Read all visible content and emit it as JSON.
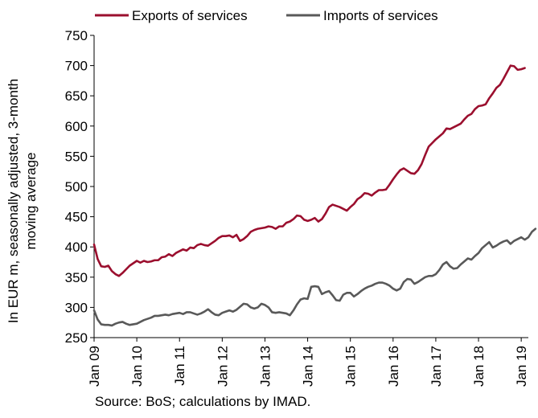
{
  "source": "Source: BoS; calculations by IMAD.",
  "chart_data": {
    "type": "line",
    "title": "",
    "ylabel_lines": [
      "In EUR m, seasonally adjusted, 3-month",
      "moving average"
    ],
    "xlabel": "",
    "ylim": [
      250,
      750
    ],
    "yticks": [
      250,
      300,
      350,
      400,
      450,
      500,
      550,
      600,
      650,
      700,
      750
    ],
    "ytick_labels": [
      "250",
      "300",
      "350",
      "400",
      "450",
      "500",
      "550",
      "600",
      "650",
      "700",
      "750"
    ],
    "xlim": [
      "2009-01",
      "2019-03"
    ],
    "xtick_labels": [
      "Jan 09",
      "Jan 10",
      "Jan 11",
      "Jan 12",
      "Jan 13",
      "Jan 14",
      "Jan 15",
      "Jan 16",
      "Jan 17",
      "Jan 18",
      "Jan 19"
    ],
    "xtick_dates": [
      "2009-01",
      "2010-01",
      "2011-01",
      "2012-01",
      "2013-01",
      "2014-01",
      "2015-01",
      "2016-01",
      "2017-01",
      "2018-01",
      "2019-01"
    ],
    "grid": false,
    "legend_position": "top",
    "series": [
      {
        "name": "Exports of services",
        "color": "#9b0f2e",
        "points": [
          [
            "2009-01",
            404
          ],
          [
            "2009-02",
            380
          ],
          [
            "2009-03",
            368
          ],
          [
            "2009-04",
            367
          ],
          [
            "2009-05",
            369
          ],
          [
            "2009-06",
            360
          ],
          [
            "2009-07",
            355
          ],
          [
            "2009-08",
            352
          ],
          [
            "2009-09",
            357
          ],
          [
            "2009-10",
            363
          ],
          [
            "2009-11",
            369
          ],
          [
            "2009-12",
            373
          ],
          [
            "2010-01",
            377
          ],
          [
            "2010-02",
            374
          ],
          [
            "2010-03",
            377
          ],
          [
            "2010-04",
            375
          ],
          [
            "2010-05",
            376
          ],
          [
            "2010-06",
            378
          ],
          [
            "2010-07",
            378
          ],
          [
            "2010-08",
            383
          ],
          [
            "2010-09",
            384
          ],
          [
            "2010-10",
            388
          ],
          [
            "2010-11",
            385
          ],
          [
            "2010-12",
            390
          ],
          [
            "2011-01",
            393
          ],
          [
            "2011-02",
            396
          ],
          [
            "2011-03",
            394
          ],
          [
            "2011-04",
            399
          ],
          [
            "2011-05",
            398
          ],
          [
            "2011-06",
            403
          ],
          [
            "2011-07",
            405
          ],
          [
            "2011-08",
            403
          ],
          [
            "2011-09",
            402
          ],
          [
            "2011-10",
            406
          ],
          [
            "2011-11",
            410
          ],
          [
            "2011-12",
            415
          ],
          [
            "2012-01",
            418
          ],
          [
            "2012-02",
            418
          ],
          [
            "2012-03",
            419
          ],
          [
            "2012-04",
            416
          ],
          [
            "2012-05",
            420
          ],
          [
            "2012-06",
            410
          ],
          [
            "2012-07",
            413
          ],
          [
            "2012-08",
            418
          ],
          [
            "2012-09",
            425
          ],
          [
            "2012-10",
            428
          ],
          [
            "2012-11",
            430
          ],
          [
            "2012-12",
            431
          ],
          [
            "2013-01",
            432
          ],
          [
            "2013-02",
            434
          ],
          [
            "2013-03",
            433
          ],
          [
            "2013-04",
            430
          ],
          [
            "2013-05",
            434
          ],
          [
            "2013-06",
            434
          ],
          [
            "2013-07",
            440
          ],
          [
            "2013-08",
            442
          ],
          [
            "2013-09",
            446
          ],
          [
            "2013-10",
            452
          ],
          [
            "2013-11",
            451
          ],
          [
            "2013-12",
            445
          ],
          [
            "2014-01",
            443
          ],
          [
            "2014-02",
            445
          ],
          [
            "2014-03",
            448
          ],
          [
            "2014-04",
            442
          ],
          [
            "2014-05",
            446
          ],
          [
            "2014-06",
            455
          ],
          [
            "2014-07",
            466
          ],
          [
            "2014-08",
            470
          ],
          [
            "2014-09",
            468
          ],
          [
            "2014-10",
            466
          ],
          [
            "2014-11",
            463
          ],
          [
            "2014-12",
            460
          ],
          [
            "2015-01",
            466
          ],
          [
            "2015-02",
            471
          ],
          [
            "2015-03",
            479
          ],
          [
            "2015-04",
            483
          ],
          [
            "2015-05",
            489
          ],
          [
            "2015-06",
            488
          ],
          [
            "2015-07",
            485
          ],
          [
            "2015-08",
            490
          ],
          [
            "2015-09",
            494
          ],
          [
            "2015-10",
            494
          ],
          [
            "2015-11",
            495
          ],
          [
            "2015-12",
            503
          ],
          [
            "2016-01",
            512
          ],
          [
            "2016-02",
            520
          ],
          [
            "2016-03",
            527
          ],
          [
            "2016-04",
            530
          ],
          [
            "2016-05",
            526
          ],
          [
            "2016-06",
            522
          ],
          [
            "2016-07",
            521
          ],
          [
            "2016-08",
            527
          ],
          [
            "2016-09",
            537
          ],
          [
            "2016-10",
            552
          ],
          [
            "2016-11",
            566
          ],
          [
            "2016-12",
            572
          ],
          [
            "2017-01",
            578
          ],
          [
            "2017-02",
            583
          ],
          [
            "2017-03",
            588
          ],
          [
            "2017-04",
            596
          ],
          [
            "2017-05",
            595
          ],
          [
            "2017-06",
            598
          ],
          [
            "2017-07",
            601
          ],
          [
            "2017-08",
            604
          ],
          [
            "2017-09",
            611
          ],
          [
            "2017-10",
            617
          ],
          [
            "2017-11",
            620
          ],
          [
            "2017-12",
            628
          ],
          [
            "2018-01",
            633
          ],
          [
            "2018-02",
            634
          ],
          [
            "2018-03",
            636
          ],
          [
            "2018-04",
            646
          ],
          [
            "2018-05",
            654
          ],
          [
            "2018-06",
            663
          ],
          [
            "2018-07",
            668
          ],
          [
            "2018-08",
            678
          ],
          [
            "2018-09",
            689
          ],
          [
            "2018-10",
            700
          ],
          [
            "2018-11",
            699
          ],
          [
            "2018-12",
            693
          ],
          [
            "2019-01",
            694
          ],
          [
            "2019-02",
            696
          ]
        ]
      },
      {
        "name": "Imports of services",
        "color": "#595959",
        "points": [
          [
            "2009-01",
            295
          ],
          [
            "2009-02",
            280
          ],
          [
            "2009-03",
            272
          ],
          [
            "2009-04",
            271
          ],
          [
            "2009-05",
            271
          ],
          [
            "2009-06",
            270
          ],
          [
            "2009-07",
            273
          ],
          [
            "2009-08",
            275
          ],
          [
            "2009-09",
            276
          ],
          [
            "2009-10",
            273
          ],
          [
            "2009-11",
            271
          ],
          [
            "2009-12",
            272
          ],
          [
            "2010-01",
            273
          ],
          [
            "2010-02",
            276
          ],
          [
            "2010-03",
            279
          ],
          [
            "2010-04",
            281
          ],
          [
            "2010-05",
            283
          ],
          [
            "2010-06",
            286
          ],
          [
            "2010-07",
            286
          ],
          [
            "2010-08",
            287
          ],
          [
            "2010-09",
            288
          ],
          [
            "2010-10",
            287
          ],
          [
            "2010-11",
            289
          ],
          [
            "2010-12",
            290
          ],
          [
            "2011-01",
            291
          ],
          [
            "2011-02",
            289
          ],
          [
            "2011-03",
            292
          ],
          [
            "2011-04",
            292
          ],
          [
            "2011-05",
            290
          ],
          [
            "2011-06",
            288
          ],
          [
            "2011-07",
            290
          ],
          [
            "2011-08",
            293
          ],
          [
            "2011-09",
            297
          ],
          [
            "2011-10",
            292
          ],
          [
            "2011-11",
            288
          ],
          [
            "2011-12",
            287
          ],
          [
            "2012-01",
            291
          ],
          [
            "2012-02",
            293
          ],
          [
            "2012-03",
            295
          ],
          [
            "2012-04",
            293
          ],
          [
            "2012-05",
            296
          ],
          [
            "2012-06",
            301
          ],
          [
            "2012-07",
            306
          ],
          [
            "2012-08",
            305
          ],
          [
            "2012-09",
            300
          ],
          [
            "2012-10",
            298
          ],
          [
            "2012-11",
            300
          ],
          [
            "2012-12",
            306
          ],
          [
            "2013-01",
            304
          ],
          [
            "2013-02",
            300
          ],
          [
            "2013-03",
            292
          ],
          [
            "2013-04",
            291
          ],
          [
            "2013-05",
            292
          ],
          [
            "2013-06",
            291
          ],
          [
            "2013-07",
            290
          ],
          [
            "2013-08",
            287
          ],
          [
            "2013-09",
            295
          ],
          [
            "2013-10",
            305
          ],
          [
            "2013-11",
            313
          ],
          [
            "2013-12",
            315
          ],
          [
            "2014-01",
            314
          ],
          [
            "2014-02",
            334
          ],
          [
            "2014-03",
            335
          ],
          [
            "2014-04",
            334
          ],
          [
            "2014-05",
            322
          ],
          [
            "2014-06",
            325
          ],
          [
            "2014-07",
            327
          ],
          [
            "2014-08",
            320
          ],
          [
            "2014-09",
            312
          ],
          [
            "2014-10",
            311
          ],
          [
            "2014-11",
            321
          ],
          [
            "2014-12",
            324
          ],
          [
            "2015-01",
            324
          ],
          [
            "2015-02",
            318
          ],
          [
            "2015-03",
            322
          ],
          [
            "2015-04",
            327
          ],
          [
            "2015-05",
            331
          ],
          [
            "2015-06",
            334
          ],
          [
            "2015-07",
            336
          ],
          [
            "2015-08",
            339
          ],
          [
            "2015-09",
            341
          ],
          [
            "2015-10",
            341
          ],
          [
            "2015-11",
            339
          ],
          [
            "2015-12",
            336
          ],
          [
            "2016-01",
            331
          ],
          [
            "2016-02",
            328
          ],
          [
            "2016-03",
            331
          ],
          [
            "2016-04",
            342
          ],
          [
            "2016-05",
            347
          ],
          [
            "2016-06",
            346
          ],
          [
            "2016-07",
            339
          ],
          [
            "2016-08",
            342
          ],
          [
            "2016-09",
            346
          ],
          [
            "2016-10",
            350
          ],
          [
            "2016-11",
            352
          ],
          [
            "2016-12",
            352
          ],
          [
            "2017-01",
            355
          ],
          [
            "2017-02",
            362
          ],
          [
            "2017-03",
            371
          ],
          [
            "2017-04",
            375
          ],
          [
            "2017-05",
            368
          ],
          [
            "2017-06",
            364
          ],
          [
            "2017-07",
            365
          ],
          [
            "2017-08",
            371
          ],
          [
            "2017-09",
            376
          ],
          [
            "2017-10",
            381
          ],
          [
            "2017-11",
            379
          ],
          [
            "2017-12",
            385
          ],
          [
            "2018-01",
            390
          ],
          [
            "2018-02",
            398
          ],
          [
            "2018-03",
            403
          ],
          [
            "2018-04",
            408
          ],
          [
            "2018-05",
            399
          ],
          [
            "2018-06",
            402
          ],
          [
            "2018-07",
            406
          ],
          [
            "2018-08",
            409
          ],
          [
            "2018-09",
            411
          ],
          [
            "2018-10",
            405
          ],
          [
            "2018-11",
            410
          ],
          [
            "2018-12",
            413
          ],
          [
            "2019-01",
            416
          ],
          [
            "2019-02",
            412
          ],
          [
            "2019-03",
            416
          ],
          [
            "2019-04",
            425
          ],
          [
            "2019-05",
            430
          ]
        ]
      }
    ]
  }
}
